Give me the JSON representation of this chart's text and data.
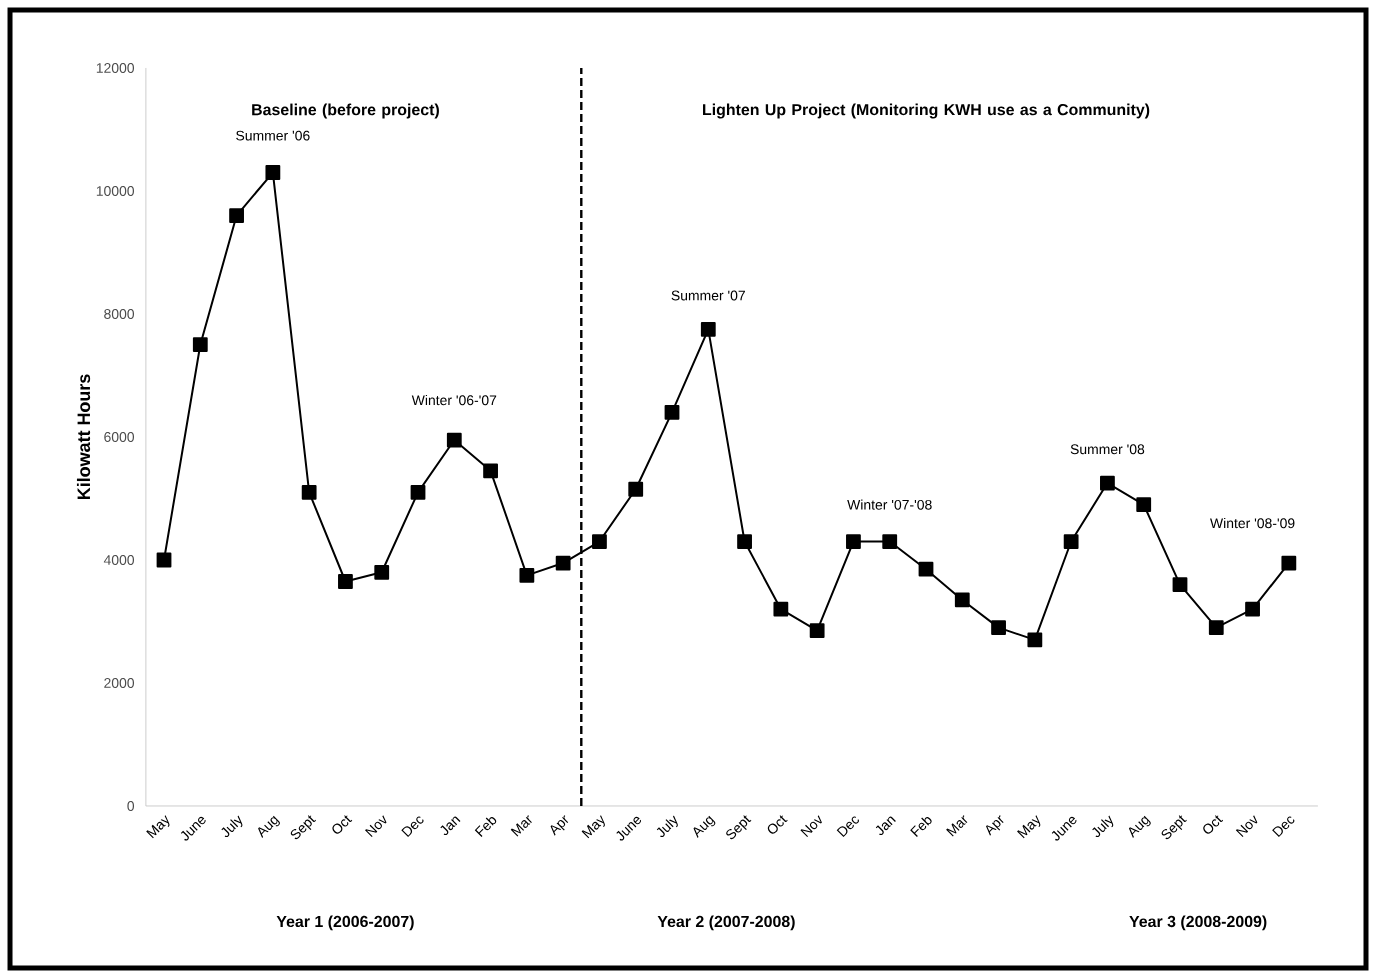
{
  "chart_data": {
    "type": "line",
    "ylabel": "Kilowatt Hours",
    "categories": [
      "May",
      "June",
      "July",
      "Aug",
      "Sept",
      "Oct",
      "Nov",
      "Dec",
      "Jan",
      "Feb",
      "Mar",
      "Apr",
      "May",
      "June",
      "July",
      "Aug",
      "Sept",
      "Oct",
      "Nov",
      "Dec",
      "Jan",
      "Feb",
      "Mar",
      "Apr",
      "May",
      "June",
      "July",
      "Aug",
      "Sept",
      "Oct",
      "Nov",
      "Dec"
    ],
    "series": [
      {
        "color": "#000000",
        "values": [
          4000,
          7500,
          9600,
          10300,
          5100,
          3650,
          3800,
          5100,
          5950,
          5450,
          3750,
          3950,
          4300,
          5150,
          6400,
          7750,
          4300,
          3200,
          2850,
          4300,
          4300,
          3850,
          3350,
          2900,
          2700,
          4300,
          5250,
          4900,
          3600,
          2900,
          3200,
          3950
        ]
      }
    ],
    "ylim": [
      0,
      12000
    ],
    "yticks": [
      0,
      2000,
      4000,
      6000,
      8000,
      10000,
      12000
    ],
    "marker": "square",
    "line_style": "solid",
    "annotations": [
      "Baseline (before project)",
      "Lighten Up Project (Monitoring KWH use as a Community)",
      "Summer '06",
      "Winter '06-'07",
      "Summer '07",
      "Winter '07-'08",
      "Summer '08",
      "Winter '08-'09",
      "Year 1 (2006-2007)",
      "Year 2 (2007-2008)",
      "Year 3 (2008-2009)"
    ]
  }
}
